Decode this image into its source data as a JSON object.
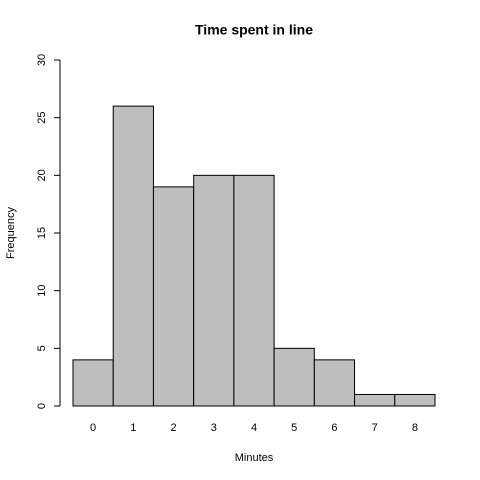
{
  "chart_data": {
    "type": "histogram",
    "title": "Time spent in line",
    "xlabel": "Minutes",
    "ylabel": "Frequency",
    "bins": [
      -0.5,
      0.5,
      1.5,
      2.5,
      3.5,
      4.5,
      5.5,
      6.5,
      7.5,
      8.5
    ],
    "values": [
      4,
      26,
      19,
      20,
      20,
      5,
      4,
      1,
      1
    ],
    "color": "#bebebe",
    "xlim": [
      -0.5,
      8.5
    ],
    "xticks": [
      0,
      1,
      2,
      3,
      4,
      5,
      6,
      7,
      8
    ],
    "ylim": [
      0,
      30
    ],
    "yticks": [
      0,
      5,
      10,
      15,
      20,
      25,
      30
    ]
  }
}
